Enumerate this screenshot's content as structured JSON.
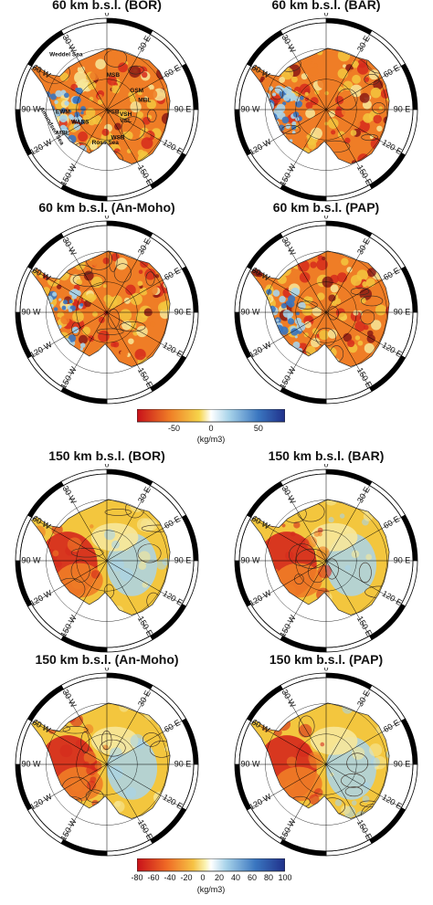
{
  "lon_labels": [
    "0",
    "30 E",
    "60 E",
    "90 E",
    "120 E",
    "150 E",
    "180",
    "150 W",
    "120 W",
    "90 W",
    "60 W",
    "30 W"
  ],
  "panels": [
    {
      "title": "60 km b.s.l. (BOR)",
      "palette": "mid",
      "annotated": true
    },
    {
      "title": "60 km b.s.l. (BAR)",
      "palette": "mid",
      "annotated": false
    },
    {
      "title": "60 km b.s.l. (An-Moho)",
      "palette": "mid",
      "annotated": false
    },
    {
      "title": "60 km b.s.l. (PAP)",
      "palette": "mid",
      "annotated": false
    },
    {
      "title": "150 km b.s.l. (BOR)",
      "palette": "deep",
      "annotated": false
    },
    {
      "title": "150 km b.s.l. (BAR)",
      "palette": "deep",
      "annotated": false
    },
    {
      "title": "150 km b.s.l. (An-Moho)",
      "palette": "deep",
      "annotated": false
    },
    {
      "title": "150 km b.s.l. (PAP)",
      "palette": "deep",
      "annotated": false
    }
  ],
  "region_labels": [
    "Weddel Sea",
    "MSB",
    "GSM",
    "MBL",
    "EWM",
    "PSB",
    "VSH",
    "VSL",
    "WARS",
    "MBL",
    "WSB",
    "Ross Sea",
    "Amundsen Sea"
  ],
  "colorbar_top": {
    "ticks": [
      "-50",
      "0",
      "50"
    ],
    "unit": "(kg/m3)"
  },
  "colorbar_bottom": {
    "ticks": [
      "-80",
      "-60",
      "-40",
      "-20",
      "0",
      "20",
      "40",
      "60",
      "80",
      "100"
    ],
    "unit": "(kg/m3)"
  },
  "colors": {
    "red": "#d62a1c",
    "orange": "#ef7d26",
    "yellow": "#f3c63e",
    "pale": "#f7e79a",
    "lightblue": "#a9d4ea",
    "blue": "#3a76c0",
    "darkblue": "#20308a",
    "darkred": "#8c1a14"
  }
}
